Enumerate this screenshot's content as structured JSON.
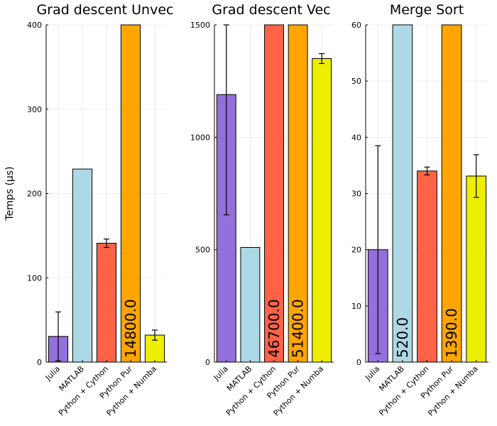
{
  "colors": {
    "Julia": "#9370DB",
    "MATLAB": "#ADD8E6",
    "Python + Cython": "#FF6347",
    "Python Pur": "#FFA500",
    "Python + Numba": "#EEEE00"
  },
  "chart_data": [
    {
      "type": "bar",
      "title": "Grad descent Unvec",
      "ylabel": "Temps (µs)",
      "categories": [
        "Julia",
        "MATLAB",
        "Python + Cython",
        "Python Pur",
        "Python + Numba"
      ],
      "values": [
        30.5,
        229,
        141,
        14800,
        32
      ],
      "errors": [
        29,
        null,
        5,
        null,
        6
      ],
      "value_labels": [
        "",
        "",
        "",
        "14800.0",
        ""
      ],
      "ylim": [
        0,
        400
      ],
      "yticks": [
        0,
        100,
        200,
        300,
        400
      ],
      "grid": true,
      "legend": "none"
    },
    {
      "type": "bar",
      "title": "Grad descent Vec",
      "ylabel": "",
      "categories": [
        "Julia",
        "MATLAB",
        "Python + Cython",
        "Python Pur",
        "Python + Numba"
      ],
      "values": [
        1190,
        510,
        46700,
        51400,
        1350
      ],
      "errors": [
        535,
        null,
        null,
        null,
        22
      ],
      "value_labels": [
        "",
        "",
        "46700.0",
        "51400.0",
        ""
      ],
      "ylim": [
        0,
        1500
      ],
      "yticks": [
        0,
        500,
        1000,
        1500
      ],
      "grid": true,
      "legend": "none"
    },
    {
      "type": "bar",
      "title": "Merge Sort",
      "ylabel": "",
      "categories": [
        "Julia",
        "MATLAB",
        "Python + Cython",
        "Python Pur",
        "Python + Numba"
      ],
      "values": [
        20,
        520,
        34,
        1390,
        33.1
      ],
      "errors": [
        18.5,
        null,
        0.7,
        null,
        3.8
      ],
      "value_labels": [
        "",
        "520.0",
        "",
        "1390.0",
        ""
      ],
      "ylim": [
        0,
        60
      ],
      "yticks": [
        0,
        10,
        20,
        30,
        40,
        50,
        60
      ],
      "grid": true,
      "legend": "none"
    }
  ]
}
